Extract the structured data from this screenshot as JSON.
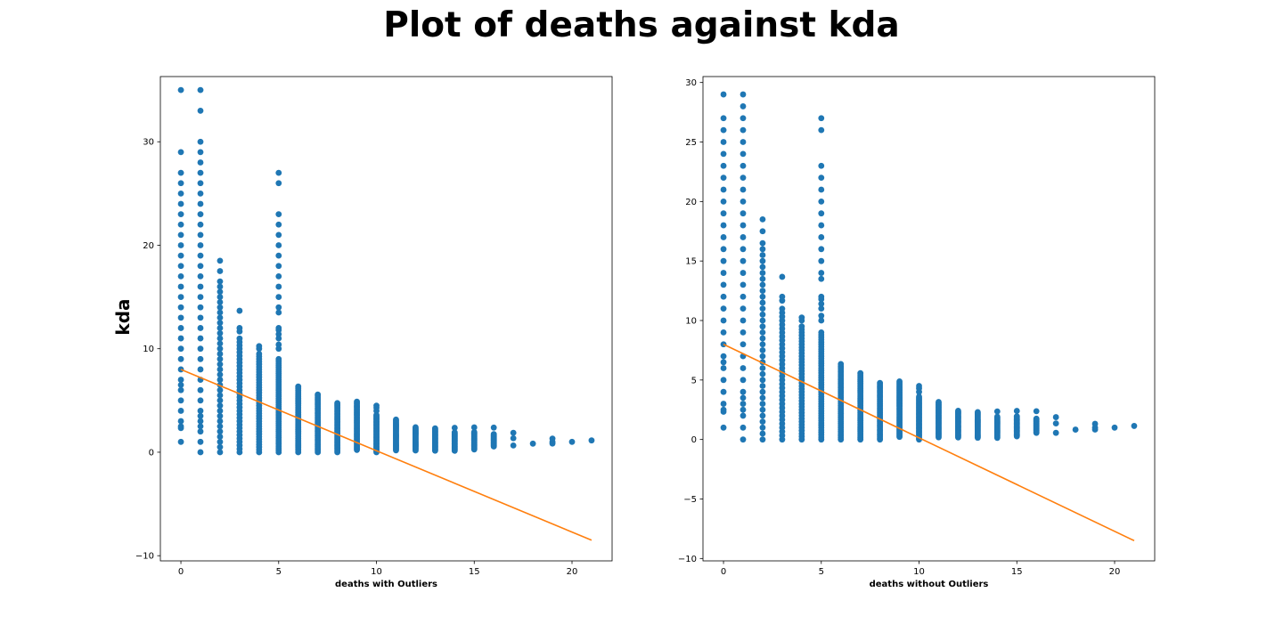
{
  "figure": {
    "title": "Plot of deaths against kda"
  },
  "colors": {
    "points": "#1f77b4",
    "line": "#ff7f0e",
    "axes": "#000000"
  },
  "chart_data": [
    {
      "type": "scatter",
      "xlabel": "deaths with Outliers",
      "ylabel": "kda",
      "xlim": [
        -1.05,
        22.05
      ],
      "ylim": [
        -10.5,
        36.3
      ],
      "xticks": [
        0,
        5,
        10,
        15,
        20
      ],
      "yticks": [
        -10,
        0,
        10,
        20,
        30
      ],
      "grid": false,
      "columns": [
        {
          "x": 0,
          "y": [
            1,
            2.33,
            2.5,
            3,
            4,
            5,
            6,
            6.5,
            7,
            8,
            9,
            10,
            11,
            12,
            13,
            14,
            15,
            16,
            17,
            18,
            19,
            20,
            21,
            22,
            23,
            24,
            25,
            26,
            27,
            29,
            35
          ]
        },
        {
          "x": 1,
          "y": [
            0,
            1,
            2,
            2.5,
            3,
            3.5,
            4,
            5,
            6,
            7,
            8,
            9,
            10,
            11,
            12,
            13,
            14,
            15,
            16,
            17,
            18,
            19,
            20,
            21,
            22,
            23,
            24,
            25,
            26,
            27,
            28,
            29,
            30,
            33,
            35
          ]
        },
        {
          "x": 2,
          "y_range": [
            0,
            16.5
          ],
          "step": 0.5,
          "extra": [
            17.5,
            18.5
          ]
        },
        {
          "x": 3,
          "y_range": [
            0,
            11
          ],
          "step": 0.333,
          "extra": [
            11.67,
            12,
            13.67
          ]
        },
        {
          "x": 4,
          "y_range": [
            0,
            9.25
          ],
          "step": 0.25,
          "extra": [
            9.5,
            10,
            10.25
          ]
        },
        {
          "x": 5,
          "y_range": [
            0,
            9
          ],
          "step": 0.2,
          "extra": [
            10,
            10.4,
            11,
            11.4,
            11.8,
            12,
            13.5,
            14,
            15,
            16,
            17,
            18,
            19,
            20,
            21,
            22,
            23,
            26,
            27
          ]
        },
        {
          "x": 6,
          "y_range": [
            0,
            6.5
          ],
          "step": 0.167
        },
        {
          "x": 7,
          "y_range": [
            0,
            5.71
          ],
          "step": 0.143
        },
        {
          "x": 8,
          "y_range": [
            0,
            4.75
          ],
          "step": 0.125
        },
        {
          "x": 9,
          "y_range": [
            0.22,
            4.89
          ],
          "step": 0.111
        },
        {
          "x": 10,
          "y_range": [
            0,
            3.6
          ],
          "step": 0.1,
          "extra": [
            4,
            4.3,
            4.5
          ]
        },
        {
          "x": 11,
          "y_range": [
            0.18,
            3.18
          ],
          "step": 0.09
        },
        {
          "x": 12,
          "y_range": [
            0.17,
            2.42
          ],
          "step": 0.083
        },
        {
          "x": 13,
          "y_range": [
            0.15,
            2.38
          ],
          "step": 0.077
        },
        {
          "x": 14,
          "y_range": [
            0.14,
            1.93
          ],
          "step": 0.071,
          "extra": [
            2.36
          ]
        },
        {
          "x": 15,
          "y_range": [
            0.27,
            2.0
          ],
          "step": 0.067,
          "extra": [
            2.4
          ]
        },
        {
          "x": 16,
          "y_range": [
            0.56,
            1.75
          ],
          "step": 0.0625,
          "extra": [
            2.38
          ]
        },
        {
          "x": 17,
          "y": [
            0.65,
            1.35,
            1.88
          ]
        },
        {
          "x": 18,
          "y": [
            0.83
          ]
        },
        {
          "x": 19,
          "y": [
            0.84,
            1.0,
            1.32
          ]
        },
        {
          "x": 20,
          "y": [
            1.0
          ]
        },
        {
          "x": 21,
          "y": [
            1.14
          ]
        }
      ],
      "regression_line": {
        "x": [
          0,
          21
        ],
        "y": [
          8.0,
          -8.5
        ]
      }
    },
    {
      "type": "scatter",
      "xlabel": "deaths without Outliers",
      "ylabel": "",
      "xlim": [
        -1.05,
        22.05
      ],
      "ylim": [
        -10.2,
        30.5
      ],
      "xticks": [
        0,
        5,
        10,
        15,
        20
      ],
      "yticks": [
        -10,
        -5,
        0,
        5,
        10,
        15,
        20,
        25,
        30
      ],
      "grid": false,
      "columns": [
        {
          "x": 0,
          "y": [
            1,
            2.33,
            2.5,
            3,
            4,
            5,
            6,
            6.5,
            7,
            8,
            9,
            10,
            11,
            12,
            13,
            14,
            15,
            16,
            17,
            18,
            19,
            20,
            21,
            22,
            23,
            24,
            25,
            26,
            27,
            29
          ]
        },
        {
          "x": 1,
          "y": [
            0,
            1,
            2,
            2.5,
            3,
            3.5,
            4,
            5,
            6,
            7,
            8,
            9,
            10,
            11,
            12,
            13,
            14,
            15,
            16,
            17,
            18,
            19,
            20,
            21,
            22,
            23,
            24,
            25,
            26,
            27,
            28,
            29
          ]
        },
        {
          "x": 2,
          "y_range": [
            0,
            16.5
          ],
          "step": 0.5,
          "extra": [
            17.5,
            18.5
          ]
        },
        {
          "x": 3,
          "y_range": [
            0,
            11
          ],
          "step": 0.333,
          "extra": [
            11.67,
            12,
            13.67
          ]
        },
        {
          "x": 4,
          "y_range": [
            0,
            9.25
          ],
          "step": 0.25,
          "extra": [
            9.5,
            10,
            10.25
          ]
        },
        {
          "x": 5,
          "y_range": [
            0,
            9
          ],
          "step": 0.2,
          "extra": [
            10,
            10.4,
            11,
            11.4,
            11.8,
            12,
            13.5,
            14,
            15,
            16,
            17,
            18,
            19,
            20,
            21,
            22,
            23,
            26,
            27
          ]
        },
        {
          "x": 6,
          "y_range": [
            0,
            6.5
          ],
          "step": 0.167
        },
        {
          "x": 7,
          "y_range": [
            0,
            5.71
          ],
          "step": 0.143
        },
        {
          "x": 8,
          "y_range": [
            0,
            4.75
          ],
          "step": 0.125
        },
        {
          "x": 9,
          "y_range": [
            0.22,
            4.89
          ],
          "step": 0.111
        },
        {
          "x": 10,
          "y_range": [
            0,
            3.6
          ],
          "step": 0.1,
          "extra": [
            4,
            4.3,
            4.5
          ]
        },
        {
          "x": 11,
          "y_range": [
            0.18,
            3.18
          ],
          "step": 0.09
        },
        {
          "x": 12,
          "y_range": [
            0.17,
            2.42
          ],
          "step": 0.083
        },
        {
          "x": 13,
          "y_range": [
            0.15,
            2.38
          ],
          "step": 0.077
        },
        {
          "x": 14,
          "y_range": [
            0.14,
            1.93
          ],
          "step": 0.071,
          "extra": [
            2.36
          ]
        },
        {
          "x": 15,
          "y_range": [
            0.27,
            2.0
          ],
          "step": 0.067,
          "extra": [
            2.4
          ]
        },
        {
          "x": 16,
          "y_range": [
            0.56,
            1.75
          ],
          "step": 0.0625,
          "extra": [
            2.38
          ]
        },
        {
          "x": 17,
          "y": [
            0.56,
            1.35,
            1.88
          ]
        },
        {
          "x": 18,
          "y": [
            0.83
          ]
        },
        {
          "x": 19,
          "y": [
            0.84,
            1.0,
            1.32
          ]
        },
        {
          "x": 20,
          "y": [
            1.0
          ]
        },
        {
          "x": 21,
          "y": [
            1.14
          ]
        }
      ],
      "regression_line": {
        "x": [
          0,
          21
        ],
        "y": [
          8.0,
          -8.5
        ]
      }
    }
  ]
}
